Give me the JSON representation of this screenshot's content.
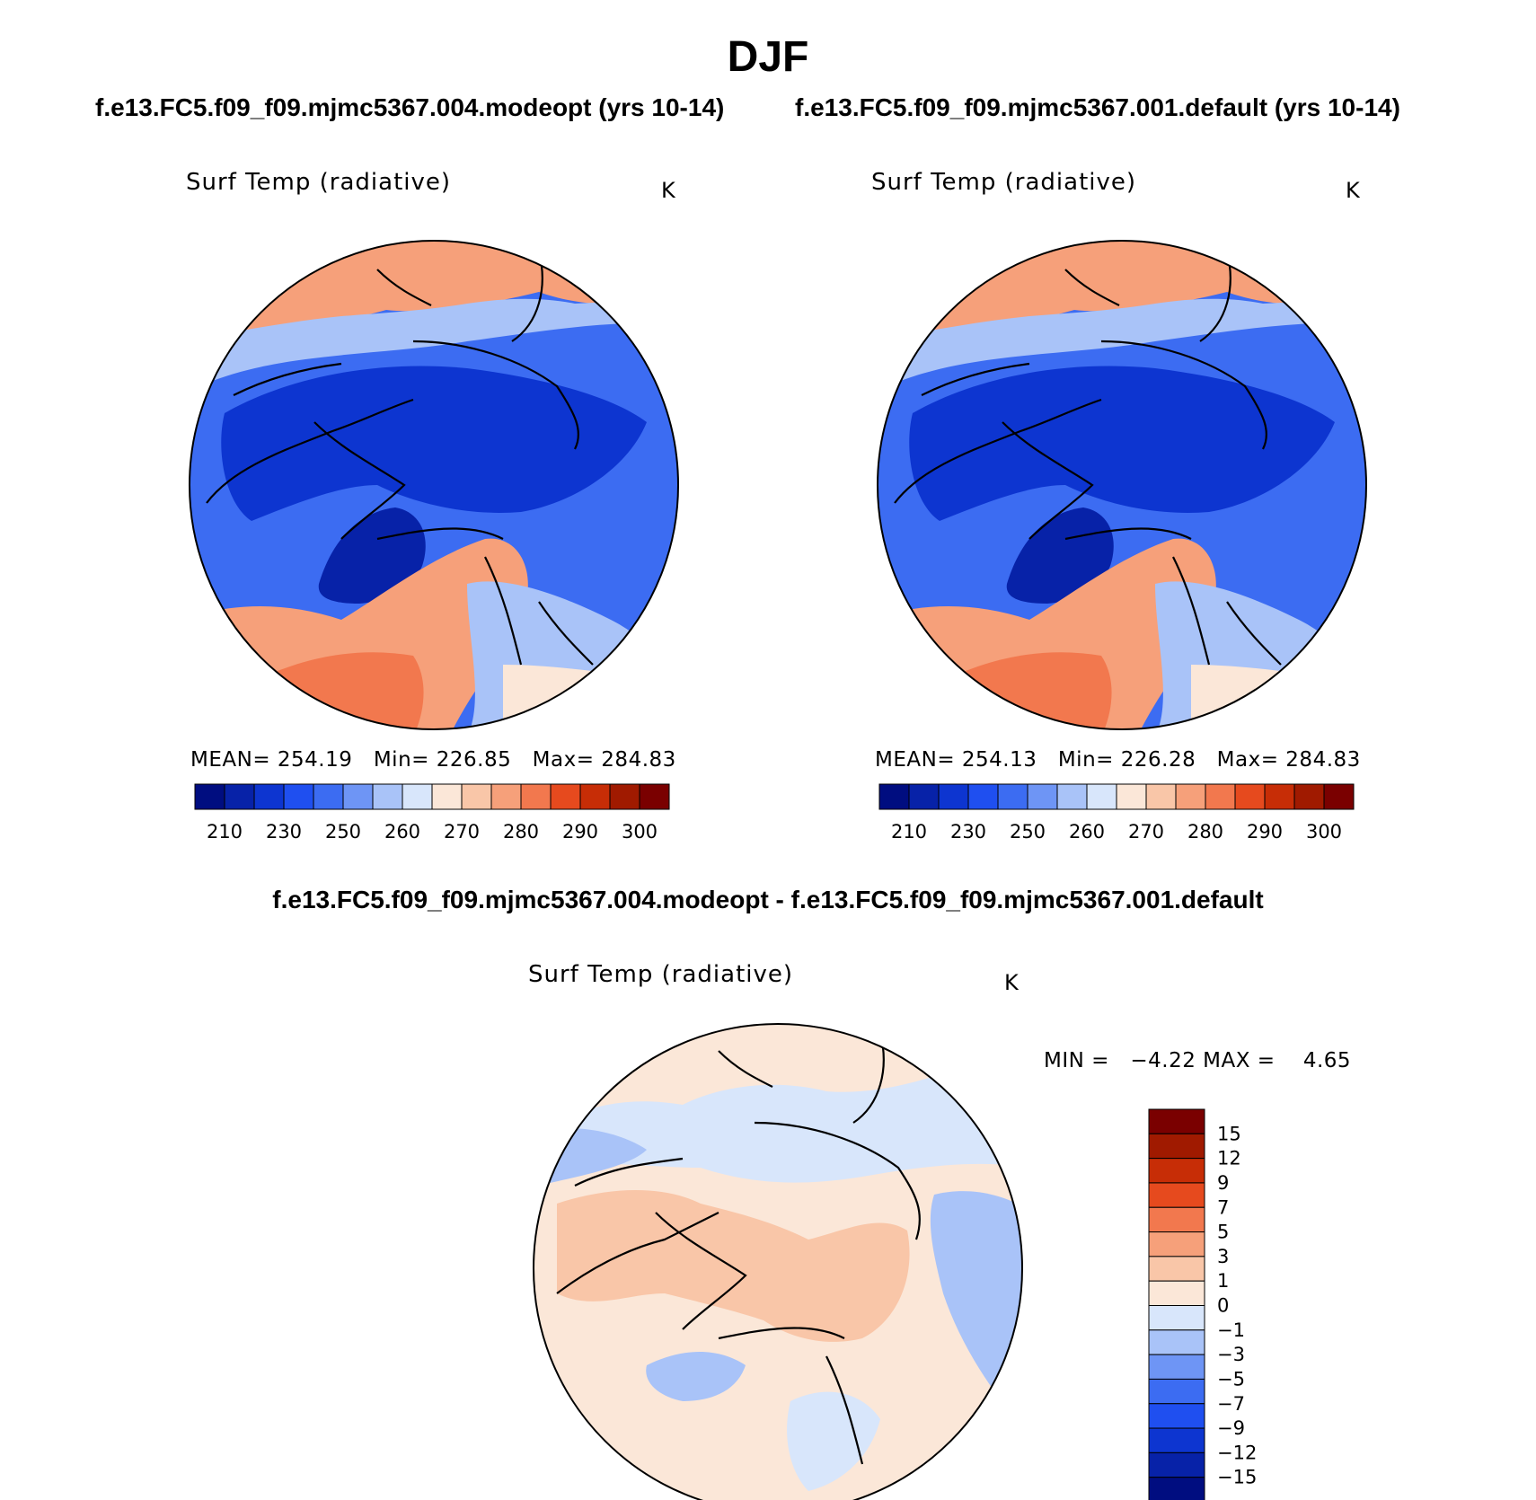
{
  "title": "DJF",
  "panels": [
    {
      "case": "f.e13.FC5.f09_f09.mjmc5367.004.modeopt (yrs 10-14)",
      "variable": "Surf Temp (radiative)",
      "units": "K",
      "stats": {
        "mean_label": "MEAN=",
        "mean": "254.19",
        "min_label": "Min=",
        "min": "226.85",
        "max_label": "Max=",
        "max": "284.83"
      }
    },
    {
      "case": "f.e13.FC5.f09_f09.mjmc5367.001.default (yrs 10-14)",
      "variable": "Surf Temp (radiative)",
      "units": "K",
      "stats": {
        "mean_label": "MEAN=",
        "mean": "254.13",
        "min_label": "Min=",
        "min": "226.28",
        "max_label": "Max=",
        "max": "284.83"
      }
    }
  ],
  "difference": {
    "title": "f.e13.FC5.f09_f09.mjmc5367.004.modeopt - f.e13.FC5.f09_f09.mjmc5367.001.default",
    "variable": "Surf Temp (radiative)",
    "units": "K",
    "min_label": "MIN =",
    "min": "−4.22",
    "max_label": "MAX =",
    "max": "4.65"
  },
  "abs_colorbar": {
    "labels": [
      "210",
      "230",
      "250",
      "260",
      "270",
      "280",
      "290",
      "300"
    ],
    "colors": [
      "#000d80",
      "#0722a8",
      "#0d35d0",
      "#1f4ff0",
      "#3c6cf2",
      "#6e95f5",
      "#a9c3f8",
      "#d8e6fb",
      "#fbe7d8",
      "#f9c6a8",
      "#f6a07a",
      "#f2784e",
      "#e64a1e",
      "#c72d06",
      "#a01a00",
      "#7a0000"
    ]
  },
  "diff_colorbar": {
    "labels": [
      "15",
      "12",
      "9",
      "7",
      "5",
      "3",
      "1",
      "0",
      "−1",
      "−3",
      "−5",
      "−7",
      "−9",
      "−12",
      "−15"
    ],
    "colors": [
      "#7a0000",
      "#a01a00",
      "#c72d06",
      "#e64a1e",
      "#f2784e",
      "#f6a07a",
      "#f9c6a8",
      "#fbe7d8",
      "#d8e6fb",
      "#a9c3f8",
      "#6e95f5",
      "#3c6cf2",
      "#1f4ff0",
      "#0d35d0",
      "#0722a8",
      "#000d80"
    ]
  },
  "map_colors": {
    "deep_blue": "#0d35d0",
    "blue": "#1f4ff0",
    "mid_blue": "#3c6cf2",
    "light_blue": "#6e95f5",
    "pale_blue": "#a9c3f8",
    "faint_blue": "#d8e6fb",
    "faint_orange": "#fbe7d8",
    "pale_orange": "#f9c6a8",
    "orange": "#f6a07a",
    "dark_orange": "#f2784e"
  }
}
